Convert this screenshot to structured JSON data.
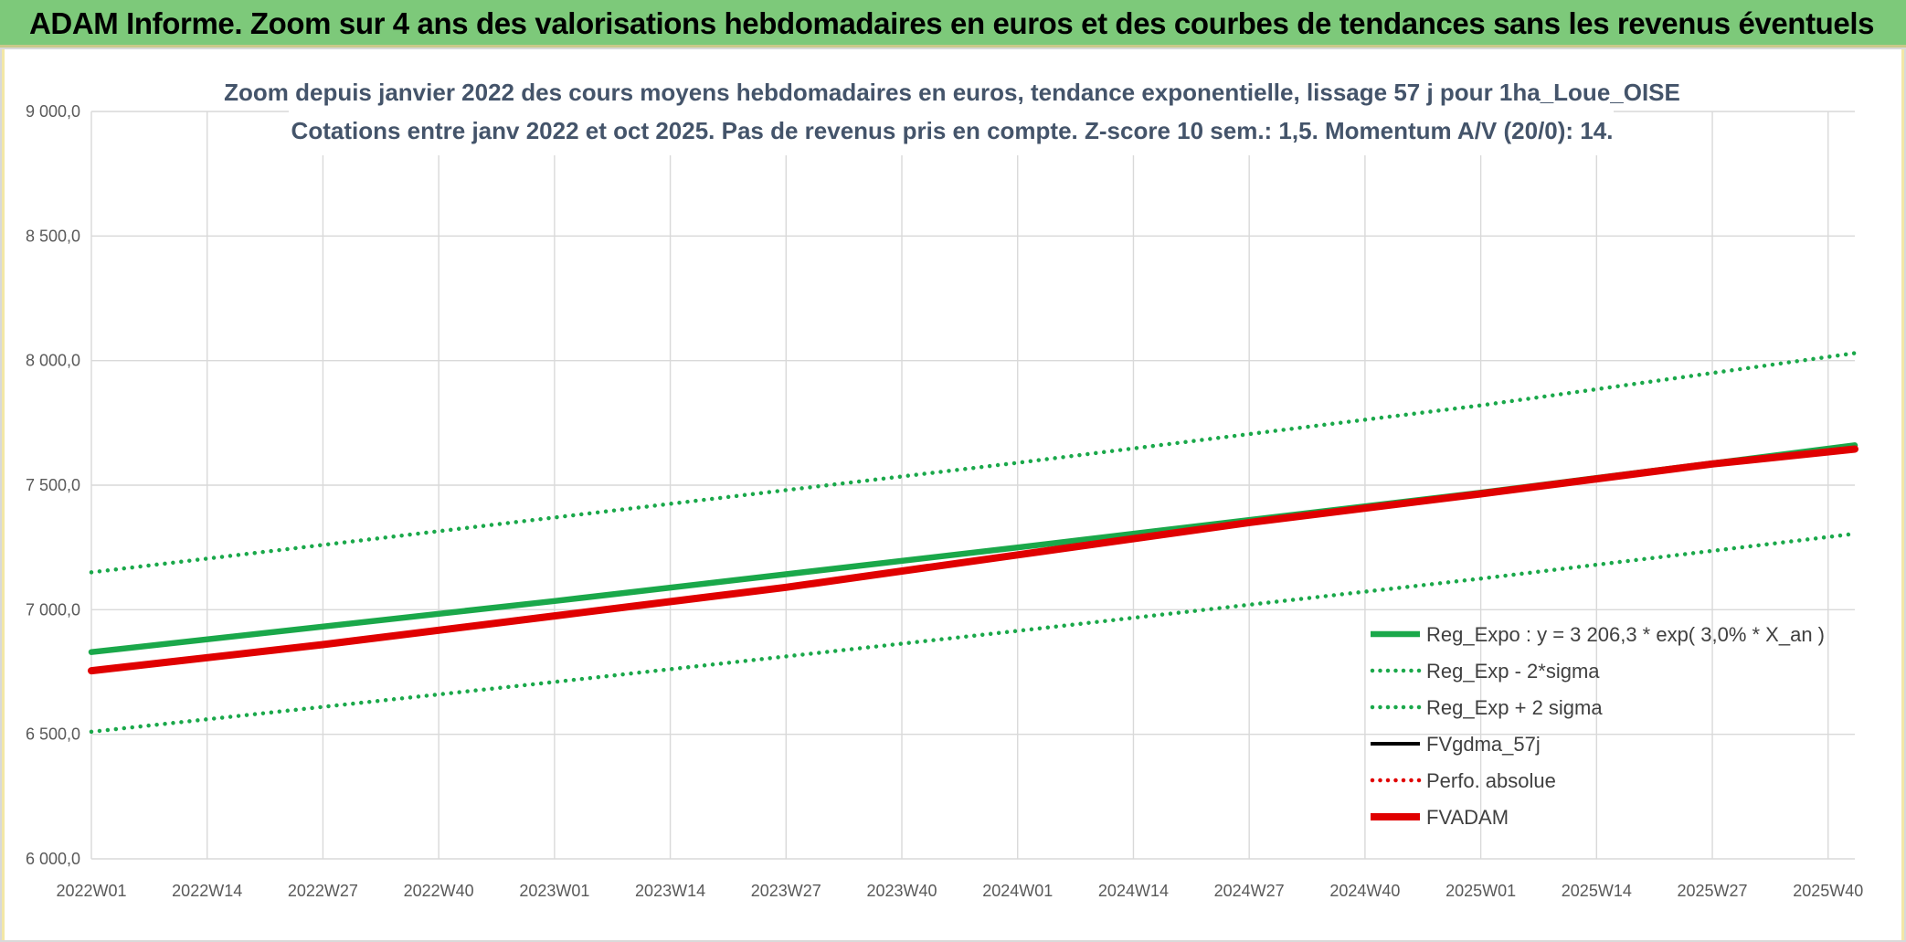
{
  "page": {
    "title": "ADAM Informe. Zoom sur 4 ans des valorisations hebdomadaires en euros et des courbes de tendances sans les revenus éventuels"
  },
  "chart_data": {
    "type": "line",
    "title": "Zoom depuis janvier 2022 des cours moyens hebdomadaires en euros, tendance exponentielle, lissage 57 j pour 1ha_Loue_OISE",
    "subtitle": "Cotations entre janv 2022 et oct 2025. Pas de revenus pris en compte. Z-score 10 sem.: 1,5. Momentum A/V (20/0): 14.",
    "xlabel": "",
    "ylabel": "",
    "ylim": [
      6000,
      9000
    ],
    "y_ticks": [
      6000,
      6500,
      7000,
      7500,
      8000,
      8500,
      9000
    ],
    "y_tick_labels": [
      "6 000,0",
      "6 500,0",
      "7 000,0",
      "7 500,0",
      "8 000,0",
      "8 500,0",
      "9 000,0"
    ],
    "x_range": [
      "2022W01",
      "2025W43"
    ],
    "x_ticks": [
      "2022W01",
      "2022W14",
      "2022W27",
      "2022W40",
      "2023W01",
      "2023W14",
      "2023W27",
      "2023W40",
      "2024W01",
      "2024W14",
      "2024W27",
      "2024W40",
      "2025W01",
      "2025W14",
      "2025W27",
      "2025W40"
    ],
    "grid": true,
    "legend_position": "bottom-right",
    "series": [
      {
        "name": "Reg_Expo : y = 3 206,3 * exp( 3,0% *  X_an )",
        "color": "#1aa84a",
        "style": "solid-thick",
        "x": [
          "2022W01",
          "2023W01",
          "2024W01",
          "2025W01",
          "2025W43"
        ],
        "values": [
          6830,
          7035,
          7250,
          7470,
          7660
        ]
      },
      {
        "name": "Reg_Exp - 2*sigma",
        "color": "#1aa84a",
        "style": "dotted",
        "x": [
          "2022W01",
          "2023W01",
          "2024W01",
          "2025W01",
          "2025W43"
        ],
        "values": [
          6510,
          6710,
          6915,
          7125,
          7305
        ]
      },
      {
        "name": "Reg_Exp + 2 sigma",
        "color": "#1aa84a",
        "style": "dotted",
        "x": [
          "2022W01",
          "2023W01",
          "2024W01",
          "2025W01",
          "2025W43"
        ],
        "values": [
          7150,
          7370,
          7590,
          7820,
          8030
        ]
      },
      {
        "name": "FVgdma_57j",
        "color": "#000000",
        "style": "solid",
        "x": [
          "2022W01",
          "2022W27",
          "2023W01",
          "2023W27",
          "2024W01",
          "2024W27",
          "2025W01",
          "2025W27",
          "2025W43"
        ],
        "values": [
          6755,
          6860,
          6975,
          7090,
          7220,
          7350,
          7465,
          7585,
          7645
        ]
      },
      {
        "name": "Perfo. absolue",
        "color": "#e00000",
        "style": "dotted",
        "x": [
          "2022W01",
          "2022W27",
          "2023W01",
          "2023W27",
          "2024W01",
          "2024W27",
          "2025W01",
          "2025W27",
          "2025W43"
        ],
        "values": [
          6755,
          6860,
          6975,
          7090,
          7220,
          7350,
          7465,
          7585,
          7645
        ]
      },
      {
        "name": "FVADAM",
        "color": "#e00000",
        "style": "solid-thick",
        "x": [
          "2022W01",
          "2022W27",
          "2023W01",
          "2023W27",
          "2024W01",
          "2024W27",
          "2025W01",
          "2025W27",
          "2025W43"
        ],
        "values": [
          6755,
          6860,
          6975,
          7090,
          7220,
          7350,
          7465,
          7585,
          7645
        ]
      }
    ]
  }
}
